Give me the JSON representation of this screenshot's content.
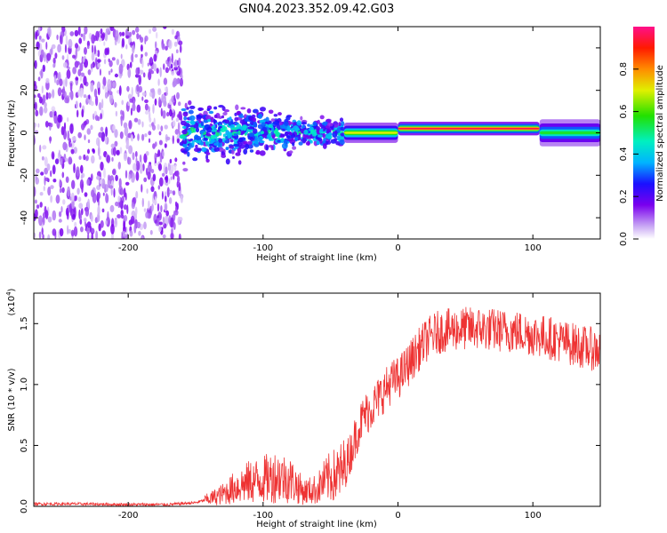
{
  "title": "GN04.2023.352.09.42.G03",
  "chart_data": [
    {
      "type": "heatmap",
      "xlabel": "Height of straight line (km)",
      "ylabel": "Frequency (Hz)",
      "xlim": [
        -270,
        150
      ],
      "ylim": [
        -50,
        50
      ],
      "xticks": [
        -200,
        -100,
        0,
        100
      ],
      "yticks": [
        -40,
        -20,
        0,
        20,
        40
      ],
      "colorbar": {
        "label": "Normalized spectral amplitude",
        "range": [
          0.0,
          1.0
        ],
        "ticks": [
          0.0,
          0.2,
          0.4,
          0.6,
          0.8
        ],
        "colormap": "rainbow (white-violet-blue-cyan-green-yellow-red-pink)"
      },
      "features": [
        {
          "x_range": [
            -270,
            -160
          ],
          "y_range": [
            -50,
            50
          ],
          "amplitude": 0.1,
          "pattern": "scattered noise"
        },
        {
          "x_range": [
            -160,
            -40
          ],
          "y_center": 0,
          "y_halfwidth": 10,
          "amplitude": 0.3,
          "pattern": "broadening spectrum"
        },
        {
          "x_range": [
            -40,
            0
          ],
          "y_center": 0,
          "y_halfwidth": 3,
          "amplitude": 0.7,
          "pattern": "narrowing line"
        },
        {
          "x_range": [
            0,
            105
          ],
          "y_center": 2,
          "y_halfwidth": 2,
          "amplitude": 0.95,
          "pattern": "narrow line"
        },
        {
          "x_range": [
            105,
            150
          ],
          "y_center": 0,
          "y_halfwidth": 4,
          "amplitude": 0.55,
          "pattern": "narrow line"
        }
      ]
    },
    {
      "type": "line",
      "xlabel": "Height of straight line (km)",
      "ylabel": "SNR (10 * v/v)",
      "yscale_label": "(x10",
      "yscale_exp": "4",
      "xlim": [
        -270,
        150
      ],
      "ylim": [
        0,
        1.75
      ],
      "xticks": [
        -200,
        -100,
        0,
        100
      ],
      "yticks": [
        "0.0",
        "0.5",
        "1.0",
        "1.5"
      ],
      "color": "#ee3333",
      "series": [
        {
          "x": [
            -270,
            -240,
            -200,
            -170,
            -150,
            -140,
            -130,
            -120,
            -110,
            -100,
            -90,
            -80,
            -70,
            -60,
            -55,
            -50,
            -45,
            -40,
            -35,
            -30,
            -25,
            -20,
            -15,
            -10,
            -5,
            0,
            5,
            10,
            15,
            20,
            25,
            30,
            40,
            50,
            60,
            70,
            80,
            90,
            100,
            110,
            120,
            130,
            140,
            150
          ],
          "y": [
            0.02,
            0.02,
            0.015,
            0.015,
            0.03,
            0.06,
            0.1,
            0.16,
            0.2,
            0.22,
            0.25,
            0.22,
            0.12,
            0.14,
            0.2,
            0.24,
            0.26,
            0.3,
            0.45,
            0.62,
            0.75,
            0.8,
            0.88,
            0.95,
            1.02,
            1.05,
            1.12,
            1.2,
            1.28,
            1.35,
            1.4,
            1.43,
            1.45,
            1.46,
            1.46,
            1.45,
            1.44,
            1.43,
            1.41,
            1.39,
            1.36,
            1.33,
            1.3,
            1.28
          ]
        }
      ]
    }
  ]
}
